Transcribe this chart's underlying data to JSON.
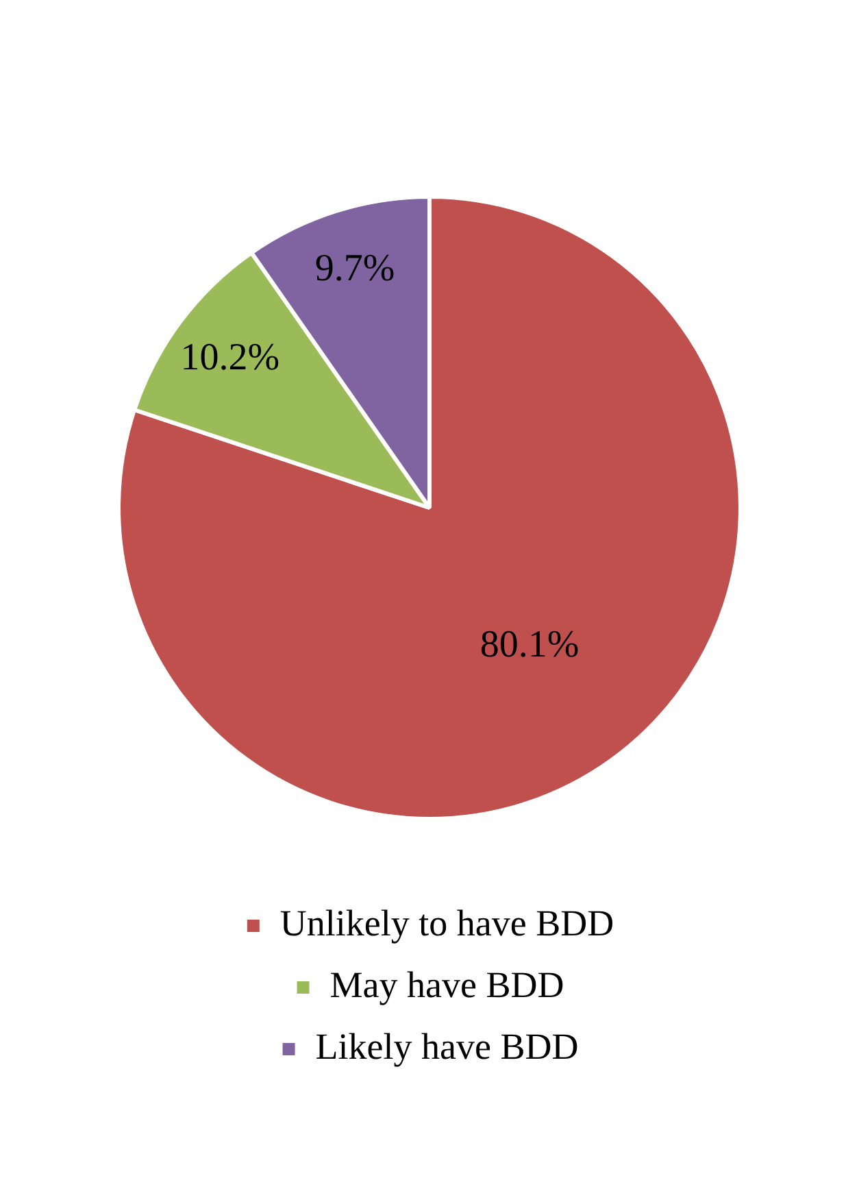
{
  "chart_data": {
    "type": "pie",
    "categories": [
      "Unlikely to have BDD",
      "May have BDD",
      "Likely have BDD"
    ],
    "values": [
      80.1,
      10.2,
      9.7
    ],
    "colors": [
      "#c0504d",
      "#9bbb59",
      "#8064a2"
    ],
    "value_labels": [
      "80.1%",
      "10.2%",
      "9.7%"
    ],
    "legend": "bottom"
  }
}
